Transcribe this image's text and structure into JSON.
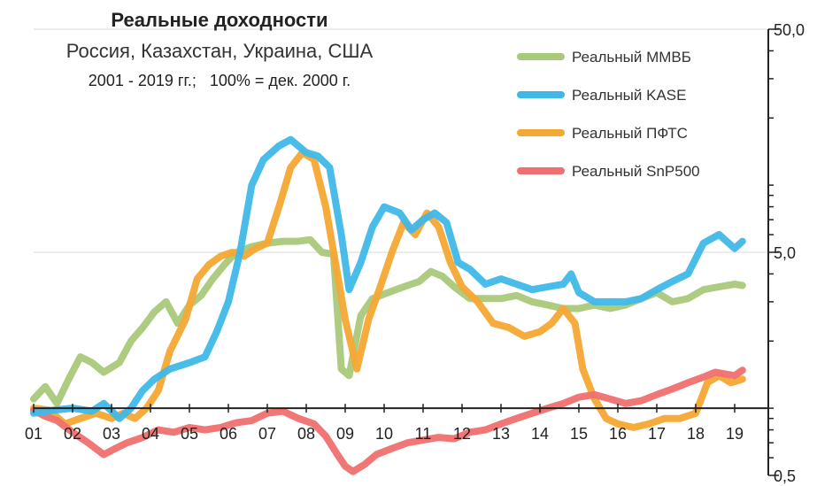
{
  "chart_data": {
    "type": "line",
    "title": "Реальные доходности",
    "subtitle": "Россия, Казахстан, Украина, США",
    "subtitle2": "2001 - 2019 гг.;   100% = дек. 2000 г.",
    "xlabel": "",
    "ylabel": "",
    "x_ticks": [
      "01",
      "02",
      "03",
      "04",
      "05",
      "06",
      "07",
      "08",
      "09",
      "10",
      "11",
      "12",
      "13",
      "14",
      "15",
      "16",
      "17",
      "18",
      "19"
    ],
    "x_start_year": 2001,
    "yscale": "log",
    "ylim": [
      0.5,
      50
    ],
    "y_tick_labels": [
      "50,0",
      "5,0",
      "0,5"
    ],
    "y_tick_values": [
      50,
      5,
      0.5
    ],
    "y_axis_position": "right",
    "baseline_value": 1,
    "grid": "horizontal-major",
    "legend_position": "top-right",
    "series": [
      {
        "name": "Реальный ММВБ",
        "color": "#a9c97a",
        "x": [
          2001.0,
          2001.3,
          2001.6,
          2001.9,
          2002.2,
          2002.5,
          2002.8,
          2003.2,
          2003.5,
          2003.8,
          2004.1,
          2004.4,
          2004.7,
          2005.0,
          2005.3,
          2005.6,
          2005.9,
          2006.2,
          2006.6,
          2007.0,
          2007.4,
          2007.8,
          2008.1,
          2008.4,
          2008.7,
          2008.9,
          2009.1,
          2009.4,
          2009.7,
          2010.1,
          2010.5,
          2010.9,
          2011.2,
          2011.5,
          2011.8,
          2012.2,
          2012.6,
          2013.0,
          2013.4,
          2013.8,
          2014.2,
          2014.6,
          2015.0,
          2015.4,
          2015.8,
          2016.2,
          2016.6,
          2017.0,
          2017.4,
          2017.8,
          2018.2,
          2018.6,
          2019.0,
          2019.2
        ],
        "y": [
          1.1,
          1.25,
          1.05,
          1.35,
          1.7,
          1.6,
          1.45,
          1.6,
          2.0,
          2.3,
          2.7,
          3.0,
          2.4,
          2.9,
          3.2,
          3.8,
          4.4,
          5.0,
          5.3,
          5.5,
          5.6,
          5.6,
          5.7,
          5.0,
          4.9,
          1.5,
          1.4,
          2.6,
          3.1,
          3.3,
          3.5,
          3.7,
          4.1,
          3.9,
          3.5,
          3.1,
          3.1,
          3.1,
          3.2,
          3.0,
          2.9,
          2.8,
          2.8,
          2.9,
          2.8,
          2.9,
          3.1,
          3.3,
          3.0,
          3.1,
          3.4,
          3.5,
          3.6,
          3.55
        ]
      },
      {
        "name": "Реальный KASE",
        "color": "#3fb8e8",
        "x": [
          2001.0,
          2001.5,
          2002.0,
          2002.5,
          2002.8,
          2003.2,
          2003.5,
          2003.8,
          2004.1,
          2004.5,
          2005.0,
          2005.4,
          2005.7,
          2006.0,
          2006.3,
          2006.6,
          2006.9,
          2007.3,
          2007.6,
          2008.0,
          2008.3,
          2008.6,
          2008.9,
          2009.1,
          2009.4,
          2009.7,
          2010.0,
          2010.4,
          2010.7,
          2011.0,
          2011.3,
          2011.6,
          2011.9,
          2012.2,
          2012.6,
          2013.0,
          2013.4,
          2013.8,
          2014.2,
          2014.6,
          2014.8,
          2015.0,
          2015.4,
          2015.8,
          2016.2,
          2016.6,
          2017.0,
          2017.4,
          2017.8,
          2018.2,
          2018.6,
          2019.0,
          2019.2
        ],
        "y": [
          0.95,
          0.98,
          1.0,
          0.97,
          1.05,
          0.9,
          1.0,
          1.2,
          1.35,
          1.5,
          1.6,
          1.7,
          2.2,
          3.0,
          5.0,
          10.0,
          13.0,
          15.0,
          16.0,
          14.0,
          13.5,
          12.0,
          6.0,
          3.4,
          4.5,
          6.5,
          8.0,
          7.5,
          6.3,
          7.0,
          7.5,
          6.8,
          4.5,
          4.2,
          3.6,
          3.8,
          3.6,
          3.4,
          3.5,
          3.6,
          4.0,
          3.3,
          3.0,
          3.0,
          3.0,
          3.1,
          3.4,
          3.7,
          4.0,
          5.5,
          6.0,
          5.2,
          5.6
        ]
      },
      {
        "name": "Реальный ПФТС",
        "color": "#f5a733",
        "x": [
          2001.0,
          2001.4,
          2001.8,
          2002.2,
          2002.6,
          2003.0,
          2003.3,
          2003.6,
          2003.9,
          2004.2,
          2004.5,
          2004.9,
          2005.2,
          2005.5,
          2005.8,
          2006.1,
          2006.4,
          2006.7,
          2007.0,
          2007.3,
          2007.6,
          2007.9,
          2008.2,
          2008.5,
          2008.8,
          2009.0,
          2009.3,
          2009.6,
          2009.9,
          2010.2,
          2010.5,
          2010.8,
          2011.1,
          2011.4,
          2011.7,
          2012.0,
          2012.4,
          2012.8,
          2013.2,
          2013.6,
          2014.0,
          2014.3,
          2014.6,
          2014.9,
          2015.1,
          2015.4,
          2015.7,
          2016.0,
          2016.4,
          2016.8,
          2017.2,
          2017.6,
          2018.0,
          2018.3,
          2018.6,
          2018.9,
          2019.2
        ],
        "y": [
          1.0,
          0.98,
          0.85,
          0.9,
          0.95,
          0.9,
          0.95,
          0.9,
          1.0,
          1.2,
          1.8,
          2.5,
          3.8,
          4.4,
          4.8,
          5.0,
          4.8,
          5.2,
          5.5,
          8.0,
          12.0,
          14.0,
          13.0,
          8.0,
          4.0,
          2.5,
          1.5,
          2.5,
          3.5,
          5.0,
          6.8,
          6.0,
          7.5,
          6.5,
          4.5,
          3.5,
          3.0,
          2.4,
          2.3,
          2.1,
          2.2,
          2.4,
          2.8,
          2.4,
          1.5,
          1.1,
          0.9,
          0.85,
          0.82,
          0.85,
          0.9,
          0.9,
          0.95,
          1.3,
          1.4,
          1.3,
          1.35
        ]
      },
      {
        "name": "Реальный SnP500",
        "color": "#f07070",
        "x": [
          2001.0,
          2001.3,
          2001.6,
          2002.0,
          2002.4,
          2002.8,
          2003.1,
          2003.4,
          2003.8,
          2004.2,
          2004.6,
          2005.0,
          2005.4,
          2005.8,
          2006.2,
          2006.6,
          2007.0,
          2007.4,
          2007.8,
          2008.2,
          2008.5,
          2008.8,
          2009.0,
          2009.2,
          2009.5,
          2009.8,
          2010.2,
          2010.6,
          2011.0,
          2011.4,
          2011.8,
          2012.2,
          2012.6,
          2013.0,
          2013.4,
          2013.8,
          2014.2,
          2014.6,
          2015.0,
          2015.4,
          2015.8,
          2016.2,
          2016.6,
          2017.0,
          2017.4,
          2017.8,
          2018.2,
          2018.5,
          2018.8,
          2019.0,
          2019.2
        ],
        "y": [
          0.98,
          0.92,
          0.88,
          0.78,
          0.7,
          0.62,
          0.66,
          0.7,
          0.74,
          0.8,
          0.78,
          0.82,
          0.8,
          0.82,
          0.86,
          0.88,
          0.95,
          0.97,
          0.9,
          0.85,
          0.75,
          0.62,
          0.55,
          0.52,
          0.56,
          0.62,
          0.66,
          0.7,
          0.72,
          0.74,
          0.73,
          0.78,
          0.8,
          0.85,
          0.9,
          0.95,
          1.0,
          1.05,
          1.12,
          1.15,
          1.1,
          1.05,
          1.08,
          1.15,
          1.22,
          1.3,
          1.38,
          1.45,
          1.42,
          1.4,
          1.48
        ]
      }
    ]
  }
}
